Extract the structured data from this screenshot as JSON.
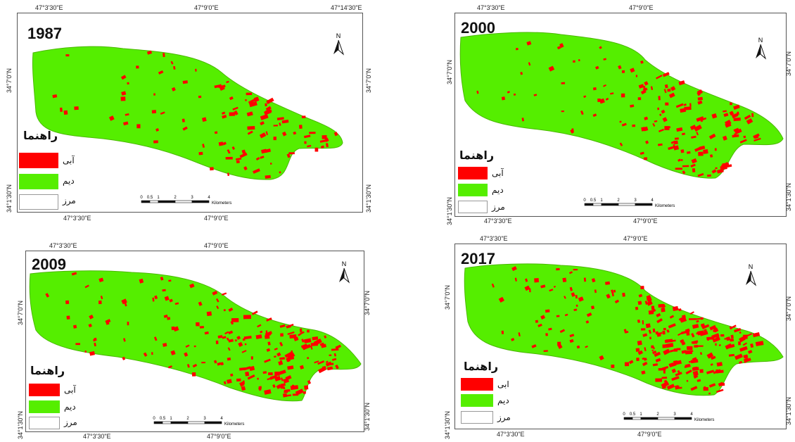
{
  "colors": {
    "irrigated": "#ff0000",
    "rainfed": "#55ee00",
    "boundary": "#ffffff",
    "frame": "#555555"
  },
  "legend": {
    "title": "راهنما",
    "items": [
      {
        "label": "آبی",
        "color": "#ff0000"
      },
      {
        "label": "دیم",
        "color": "#55ee00"
      },
      {
        "label": "مرز",
        "color": "#ffffff"
      }
    ]
  },
  "legend_2017": {
    "title": "راهنما",
    "items": [
      {
        "label": "ابی",
        "color": "#ff0000"
      },
      {
        "label": "دیم",
        "color": "#55ee00"
      },
      {
        "label": "مرز",
        "color": "#ffffff"
      }
    ]
  },
  "north_label": "N",
  "scale": {
    "ticks": [
      "0",
      "0.5",
      "1",
      "2",
      "3",
      "4"
    ],
    "unit": "Kilometers"
  },
  "panels": {
    "p1987": {
      "year": "1987",
      "top_coords": [
        "47°3'30\"E",
        "47°9'0\"E",
        "47°14'30\"E"
      ],
      "bottom_coords": [
        "47°3'30\"E",
        "47°9'0\"E"
      ],
      "left_coords": [
        "34°7'0\"N",
        "34°1'30\"N"
      ],
      "right_coords": [
        "34°7'0\"N",
        "34°1'30\"N"
      ]
    },
    "p2000": {
      "year": "2000",
      "top_coords": [
        "47°3'30\"E",
        "47°9'0\"E"
      ],
      "bottom_coords": [
        "47°3'30\"E",
        "47°9'0\"E"
      ],
      "left_coords": [
        "34°7'0\"N",
        "34°1'30\"N"
      ],
      "right_coords": [
        "34°7'0\"N",
        "34°1'30\"N"
      ]
    },
    "p2009": {
      "year": "2009",
      "top_coords": [
        "47°3'30\"E",
        "47°9'0\"E"
      ],
      "bottom_coords": [
        "47°3'30\"E",
        "47°9'0\"E"
      ],
      "left_coords": [
        "34°7'0\"N",
        "34°1'30\"N"
      ],
      "right_coords": [
        "34°7'0\"N",
        "34°1'30\"N"
      ]
    },
    "p2017": {
      "year": "2017",
      "top_coords": [
        "47°3'30\"E",
        "47°9'0\"E"
      ],
      "bottom_coords": [
        "47°3'30\"E",
        "47°9'0\"E"
      ],
      "left_coords": [
        "34°7'0\"N",
        "34°1'30\"N"
      ],
      "right_coords": [
        "34°7'0\"N",
        "34°1'30\"N"
      ]
    }
  }
}
